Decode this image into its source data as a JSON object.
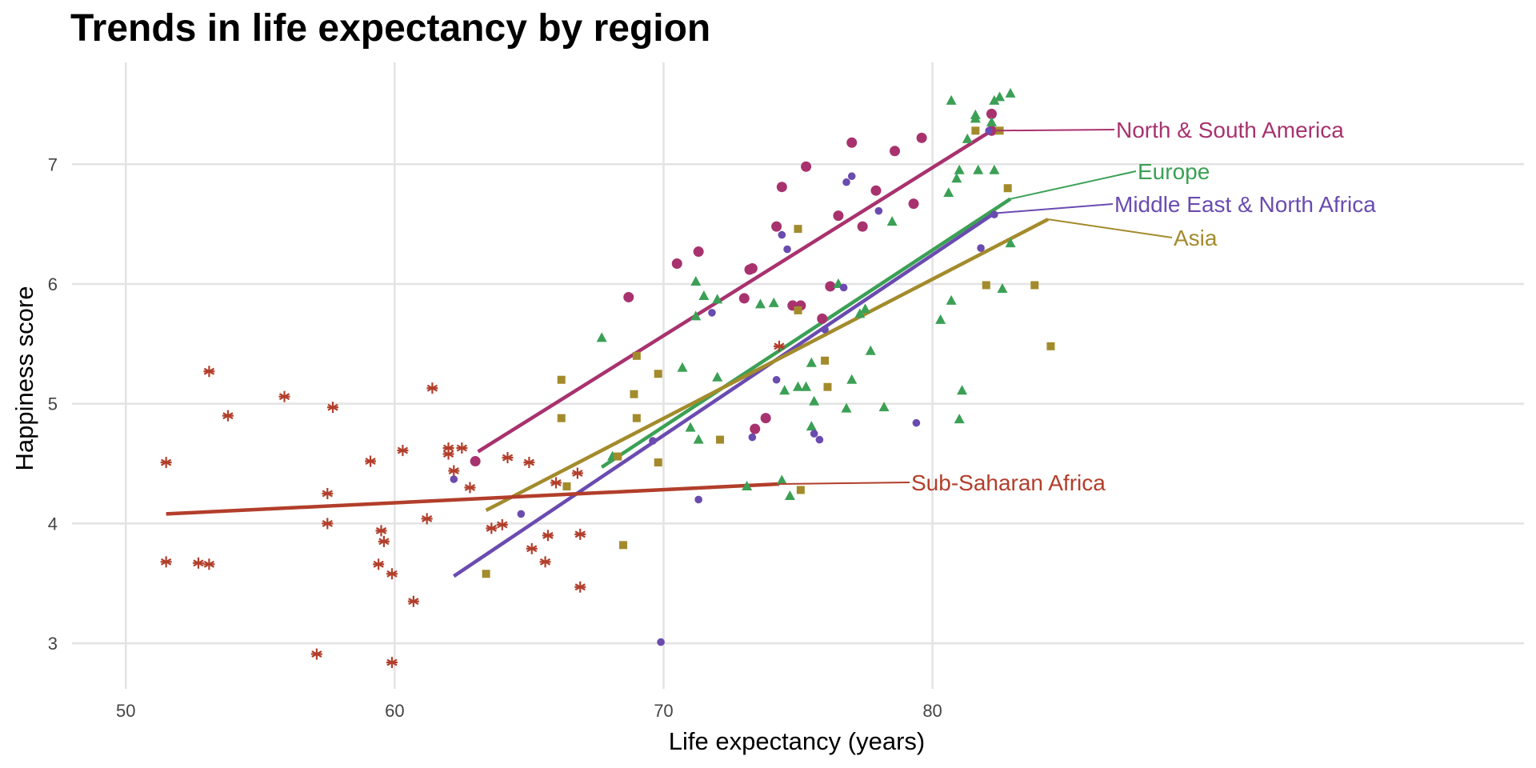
{
  "chart_data": {
    "type": "scatter",
    "title": "Trends in life expectancy by region",
    "xlabel": "Life expectancy (years)",
    "ylabel": "Happiness score",
    "xlim": [
      48,
      102
    ],
    "ylim": [
      2.62,
      7.85
    ],
    "x_ticks": [
      50,
      60,
      70,
      80
    ],
    "y_ticks": [
      3,
      4,
      5,
      6,
      7
    ],
    "grid": true,
    "legend": "direct labels at line ends",
    "series": [
      {
        "name": "North & South America",
        "color": "#a8326e",
        "marker": "circle",
        "points": [
          [
            63.0,
            4.52
          ],
          [
            68.7,
            5.89
          ],
          [
            70.5,
            6.17
          ],
          [
            71.3,
            6.27
          ],
          [
            73.0,
            5.88
          ],
          [
            73.2,
            6.12
          ],
          [
            73.3,
            6.13
          ],
          [
            73.4,
            4.79
          ],
          [
            73.8,
            4.88
          ],
          [
            74.2,
            6.48
          ],
          [
            74.4,
            6.81
          ],
          [
            74.8,
            5.82
          ],
          [
            75.1,
            5.82
          ],
          [
            75.3,
            6.98
          ],
          [
            75.9,
            5.71
          ],
          [
            76.2,
            5.98
          ],
          [
            76.5,
            6.57
          ],
          [
            77.0,
            7.18
          ],
          [
            77.4,
            6.48
          ],
          [
            77.9,
            6.78
          ],
          [
            78.6,
            7.11
          ],
          [
            79.3,
            6.67
          ],
          [
            79.6,
            7.22
          ],
          [
            82.2,
            7.42
          ],
          [
            82.2,
            7.28
          ]
        ],
        "fit": {
          "x": [
            63.1,
            82.2
          ],
          "y": [
            4.6,
            7.28
          ]
        },
        "label_anchor": [
          82.2,
          7.28
        ]
      },
      {
        "name": "Europe",
        "color": "#3ba055",
        "marker": "triangle",
        "points": [
          [
            67.7,
            5.55
          ],
          [
            68.1,
            4.56
          ],
          [
            70.7,
            5.3
          ],
          [
            71.0,
            4.8
          ],
          [
            71.2,
            6.02
          ],
          [
            71.2,
            5.73
          ],
          [
            71.3,
            4.7
          ],
          [
            71.5,
            5.9
          ],
          [
            72.0,
            5.22
          ],
          [
            72.0,
            5.87
          ],
          [
            73.1,
            4.31
          ],
          [
            73.6,
            5.83
          ],
          [
            74.1,
            5.84
          ],
          [
            74.4,
            4.36
          ],
          [
            74.5,
            5.11
          ],
          [
            74.7,
            4.23
          ],
          [
            75.0,
            5.14
          ],
          [
            75.3,
            5.14
          ],
          [
            75.5,
            5.34
          ],
          [
            75.5,
            4.81
          ],
          [
            75.6,
            5.02
          ],
          [
            76.5,
            6.0
          ],
          [
            76.8,
            4.96
          ],
          [
            77.0,
            5.2
          ],
          [
            77.3,
            5.75
          ],
          [
            77.5,
            5.79
          ],
          [
            77.7,
            5.44
          ],
          [
            78.2,
            4.97
          ],
          [
            78.5,
            6.52
          ],
          [
            80.3,
            5.7
          ],
          [
            80.6,
            6.76
          ],
          [
            80.7,
            7.53
          ],
          [
            80.7,
            5.86
          ],
          [
            80.9,
            6.88
          ],
          [
            81.0,
            6.95
          ],
          [
            81.0,
            4.87
          ],
          [
            81.1,
            5.11
          ],
          [
            81.3,
            7.21
          ],
          [
            81.6,
            7.41
          ],
          [
            81.6,
            7.38
          ],
          [
            81.7,
            6.95
          ],
          [
            82.2,
            7.35
          ],
          [
            82.3,
            7.53
          ],
          [
            82.3,
            6.95
          ],
          [
            82.5,
            7.56
          ],
          [
            82.6,
            5.96
          ],
          [
            82.9,
            6.34
          ],
          [
            82.9,
            7.59
          ]
        ],
        "fit": {
          "x": [
            67.7,
            82.9
          ],
          "y": [
            4.47,
            6.71
          ]
        },
        "label_anchor": [
          82.9,
          6.71
        ]
      },
      {
        "name": "Middle East & North Africa",
        "color": "#6a4bb0",
        "marker": "dot",
        "points": [
          [
            62.2,
            4.37
          ],
          [
            64.7,
            4.08
          ],
          [
            69.6,
            4.69
          ],
          [
            69.9,
            3.01
          ],
          [
            71.3,
            4.2
          ],
          [
            71.8,
            5.76
          ],
          [
            73.3,
            4.72
          ],
          [
            74.2,
            5.2
          ],
          [
            74.4,
            6.41
          ],
          [
            74.6,
            6.29
          ],
          [
            75.6,
            4.75
          ],
          [
            75.8,
            4.7
          ],
          [
            76.0,
            5.62
          ],
          [
            76.7,
            5.97
          ],
          [
            76.8,
            6.85
          ],
          [
            77.0,
            6.9
          ],
          [
            78.0,
            6.61
          ],
          [
            79.4,
            4.84
          ],
          [
            81.8,
            6.3
          ],
          [
            82.1,
            7.28
          ],
          [
            82.3,
            6.58
          ]
        ],
        "fit": {
          "x": [
            62.2,
            82.3
          ],
          "y": [
            3.56,
            6.59
          ]
        },
        "label_anchor": [
          82.3,
          6.59
        ]
      },
      {
        "name": "Asia",
        "color": "#a38b2c",
        "marker": "square",
        "points": [
          [
            63.4,
            3.58
          ],
          [
            66.2,
            5.2
          ],
          [
            66.2,
            4.88
          ],
          [
            66.4,
            4.31
          ],
          [
            68.3,
            4.56
          ],
          [
            68.5,
            3.82
          ],
          [
            68.9,
            5.08
          ],
          [
            69.0,
            5.4
          ],
          [
            69.0,
            4.88
          ],
          [
            69.8,
            5.25
          ],
          [
            69.8,
            4.51
          ],
          [
            72.1,
            4.7
          ],
          [
            75.0,
            5.78
          ],
          [
            75.0,
            6.46
          ],
          [
            75.1,
            4.28
          ],
          [
            76.0,
            5.36
          ],
          [
            76.1,
            5.14
          ],
          [
            81.6,
            7.28
          ],
          [
            82.0,
            5.99
          ],
          [
            82.5,
            7.28
          ],
          [
            82.8,
            6.8
          ],
          [
            83.8,
            5.99
          ],
          [
            84.4,
            5.48
          ]
        ],
        "fit": {
          "x": [
            63.4,
            84.3
          ],
          "y": [
            4.11,
            6.54
          ]
        },
        "label_anchor": [
          84.3,
          6.54
        ]
      },
      {
        "name": "Sub-Saharan Africa",
        "color": "#b23e2b",
        "marker": "asterisk",
        "points": [
          [
            51.5,
            4.51
          ],
          [
            51.5,
            3.68
          ],
          [
            52.7,
            3.67
          ],
          [
            53.1,
            5.27
          ],
          [
            53.1,
            3.66
          ],
          [
            53.8,
            4.9
          ],
          [
            55.9,
            5.06
          ],
          [
            57.1,
            2.91
          ],
          [
            57.5,
            4.25
          ],
          [
            57.5,
            4.0
          ],
          [
            57.7,
            4.97
          ],
          [
            59.1,
            4.52
          ],
          [
            59.4,
            3.66
          ],
          [
            59.5,
            3.94
          ],
          [
            59.6,
            3.85
          ],
          [
            59.9,
            3.58
          ],
          [
            59.9,
            2.84
          ],
          [
            60.3,
            4.61
          ],
          [
            60.7,
            3.35
          ],
          [
            61.2,
            4.04
          ],
          [
            61.4,
            5.13
          ],
          [
            62.0,
            4.63
          ],
          [
            62.0,
            4.58
          ],
          [
            62.2,
            4.44
          ],
          [
            62.5,
            4.63
          ],
          [
            62.8,
            4.3
          ],
          [
            63.6,
            3.96
          ],
          [
            64.0,
            3.99
          ],
          [
            64.2,
            4.55
          ],
          [
            65.0,
            4.51
          ],
          [
            65.1,
            3.79
          ],
          [
            65.6,
            3.68
          ],
          [
            65.7,
            3.9
          ],
          [
            66.0,
            4.34
          ],
          [
            66.8,
            4.42
          ],
          [
            66.9,
            3.47
          ],
          [
            66.9,
            3.91
          ],
          [
            74.3,
            5.48
          ]
        ],
        "fit": {
          "x": [
            51.5,
            74.3
          ],
          "y": [
            4.08,
            4.33
          ]
        },
        "label_anchor": [
          74.3,
          4.33
        ]
      }
    ]
  }
}
